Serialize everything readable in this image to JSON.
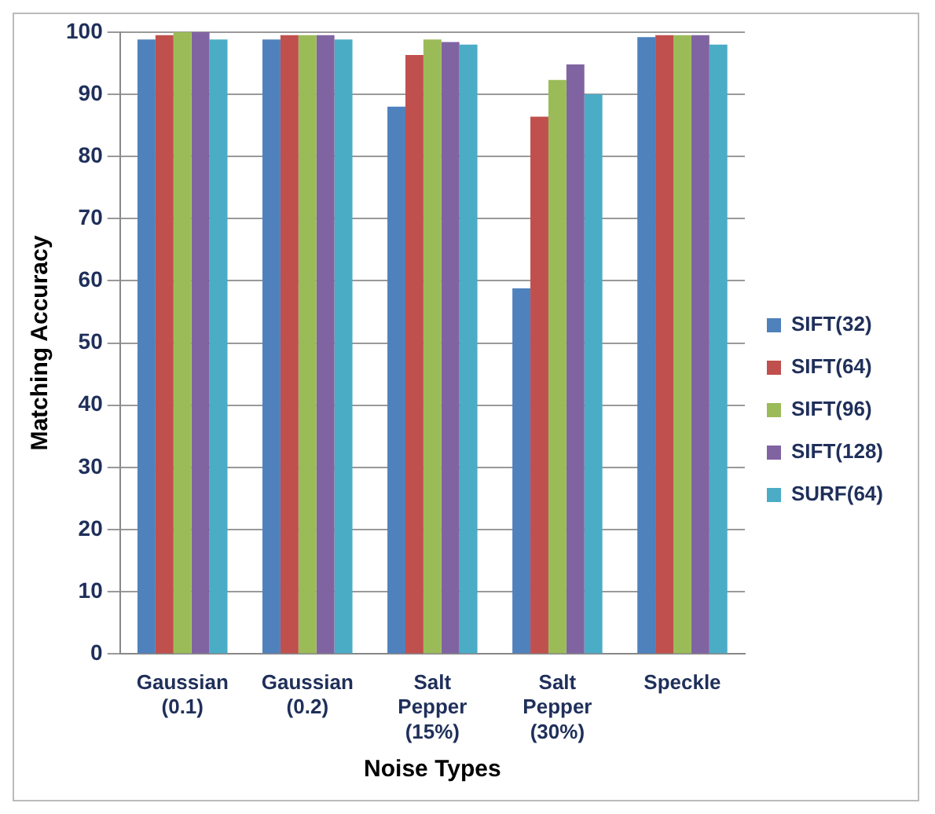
{
  "chart_data": {
    "type": "bar",
    "xlabel": "Noise Types",
    "ylabel": "Matching Accuracy",
    "categories": [
      "Gaussian (0.1)",
      "Gaussian (0.2)",
      "Salt Pepper (15%)",
      "Salt Pepper (30%)",
      "Speckle"
    ],
    "series": [
      {
        "name": "SIFT(32)",
        "color": "#4f81bd",
        "values": [
          98.8,
          98.8,
          88,
          58.8,
          99.2
        ]
      },
      {
        "name": "SIFT(64)",
        "color": "#c0504d",
        "values": [
          99.5,
          99.5,
          96.3,
          86.4,
          99.5
        ]
      },
      {
        "name": "SIFT(96)",
        "color": "#9bbb59",
        "values": [
          100,
          99.5,
          98.8,
          92.3,
          99.5
        ]
      },
      {
        "name": "SIFT(128)",
        "color": "#8064a2",
        "values": [
          100,
          99.5,
          98.4,
          94.8,
          99.5
        ]
      },
      {
        "name": "SURF(64)",
        "color": "#4bacc6",
        "values": [
          98.8,
          98.8,
          98,
          90,
          98
        ]
      }
    ],
    "ylim": [
      0,
      100
    ],
    "yticks": [
      0,
      10,
      20,
      30,
      40,
      50,
      60,
      70,
      80,
      90,
      100
    ],
    "grid": "y",
    "legend": "right"
  }
}
